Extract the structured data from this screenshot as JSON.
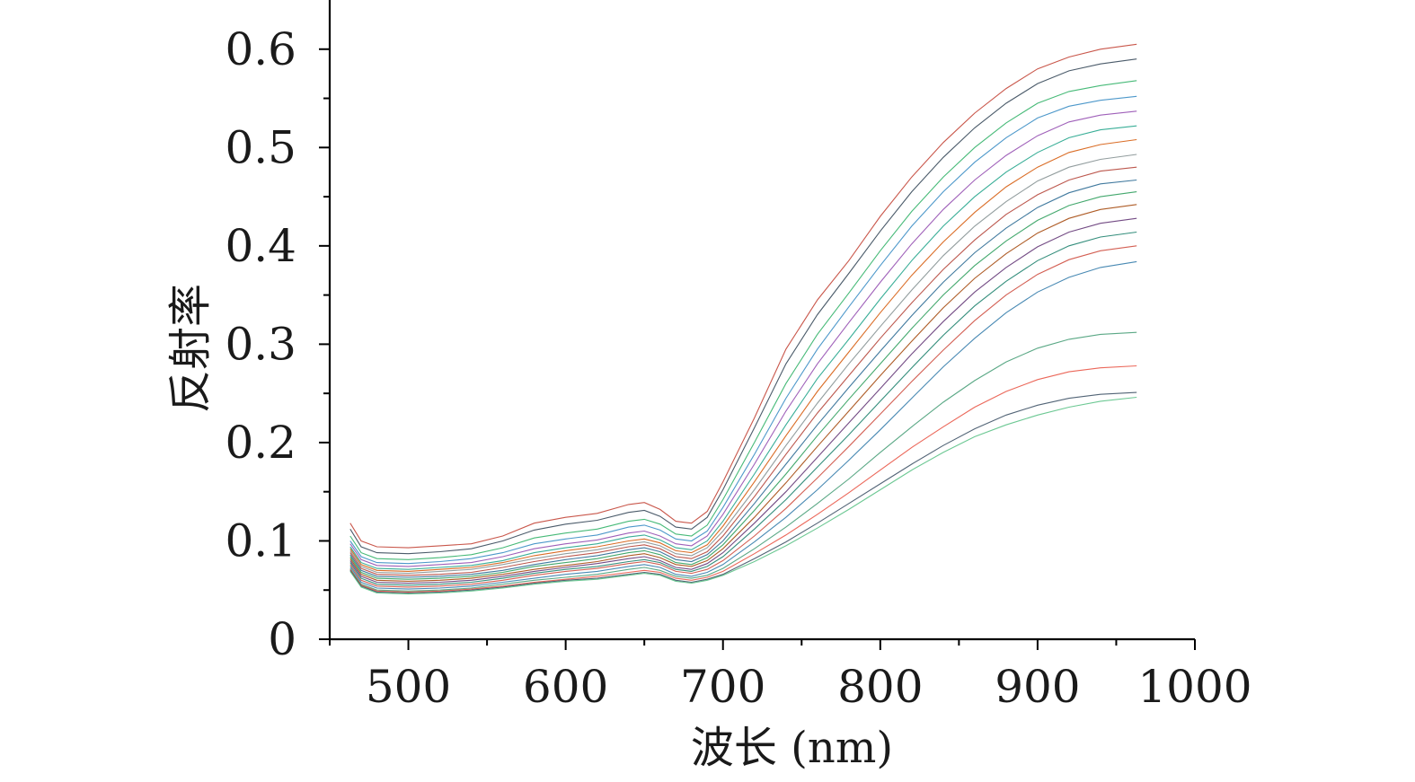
{
  "chart_data": {
    "type": "line",
    "title": "",
    "xlabel": "波长 (nm)",
    "ylabel": "反射率",
    "xlim": [
      450,
      1000
    ],
    "ylim": [
      0,
      0.65
    ],
    "grid": false,
    "legend": "none",
    "x_ticks": [
      500,
      600,
      700,
      800,
      900,
      1000
    ],
    "x_tick_labels": [
      "500",
      "600",
      "700",
      "800",
      "900",
      "1000"
    ],
    "y_ticks": [
      0,
      0.1,
      0.2,
      0.3,
      0.4,
      0.5,
      0.6
    ],
    "y_tick_labels": [
      "0",
      "0.1",
      "0.2",
      "0.3",
      "0.4",
      "0.5",
      "0.6"
    ],
    "x": [
      463,
      470,
      480,
      500,
      520,
      540,
      560,
      580,
      600,
      620,
      640,
      650,
      660,
      670,
      680,
      690,
      700,
      720,
      740,
      760,
      780,
      800,
      820,
      840,
      860,
      880,
      900,
      920,
      940,
      963
    ],
    "series_colors": [
      "#c0392b",
      "#2c3e50",
      "#27ae60",
      "#2e86c1",
      "#8e44ad",
      "#16a085",
      "#d35400",
      "#7f8c8d",
      "#b03a2e",
      "#1f618d",
      "#229954",
      "#a04000",
      "#5b2c6f",
      "#117a65",
      "#cb4335",
      "#2874a6",
      "#3d9970",
      "#e74c3c",
      "#34495e",
      "#52be80"
    ],
    "series": [
      {
        "values": [
          0.118,
          0.1,
          0.094,
          0.093,
          0.095,
          0.097,
          0.105,
          0.118,
          0.124,
          0.128,
          0.137,
          0.139,
          0.132,
          0.12,
          0.118,
          0.13,
          0.16,
          0.225,
          0.295,
          0.345,
          0.385,
          0.43,
          0.47,
          0.505,
          0.535,
          0.56,
          0.58,
          0.592,
          0.6,
          0.605
        ]
      },
      {
        "values": [
          0.112,
          0.094,
          0.088,
          0.087,
          0.089,
          0.092,
          0.1,
          0.111,
          0.117,
          0.121,
          0.129,
          0.131,
          0.125,
          0.114,
          0.112,
          0.124,
          0.152,
          0.215,
          0.28,
          0.33,
          0.372,
          0.415,
          0.455,
          0.49,
          0.52,
          0.545,
          0.565,
          0.578,
          0.585,
          0.59
        ]
      },
      {
        "values": [
          0.105,
          0.088,
          0.082,
          0.081,
          0.083,
          0.086,
          0.093,
          0.103,
          0.108,
          0.112,
          0.12,
          0.122,
          0.117,
          0.107,
          0.105,
          0.116,
          0.142,
          0.2,
          0.26,
          0.31,
          0.352,
          0.395,
          0.435,
          0.47,
          0.5,
          0.525,
          0.545,
          0.557,
          0.563,
          0.568
        ]
      },
      {
        "values": [
          0.1,
          0.084,
          0.078,
          0.077,
          0.079,
          0.082,
          0.088,
          0.097,
          0.102,
          0.106,
          0.114,
          0.116,
          0.111,
          0.102,
          0.1,
          0.11,
          0.134,
          0.188,
          0.245,
          0.295,
          0.338,
          0.38,
          0.42,
          0.455,
          0.485,
          0.51,
          0.53,
          0.542,
          0.548,
          0.552
        ]
      },
      {
        "values": [
          0.097,
          0.081,
          0.075,
          0.074,
          0.076,
          0.078,
          0.084,
          0.092,
          0.097,
          0.101,
          0.108,
          0.11,
          0.105,
          0.097,
          0.095,
          0.105,
          0.127,
          0.178,
          0.232,
          0.28,
          0.322,
          0.363,
          0.402,
          0.437,
          0.467,
          0.492,
          0.512,
          0.526,
          0.533,
          0.537
        ]
      },
      {
        "values": [
          0.094,
          0.078,
          0.072,
          0.071,
          0.073,
          0.075,
          0.08,
          0.088,
          0.093,
          0.097,
          0.104,
          0.106,
          0.101,
          0.093,
          0.091,
          0.1,
          0.12,
          0.168,
          0.218,
          0.265,
          0.305,
          0.346,
          0.385,
          0.42,
          0.45,
          0.475,
          0.495,
          0.51,
          0.518,
          0.522
        ]
      },
      {
        "values": [
          0.092,
          0.076,
          0.07,
          0.069,
          0.071,
          0.073,
          0.078,
          0.085,
          0.09,
          0.094,
          0.1,
          0.102,
          0.098,
          0.09,
          0.088,
          0.096,
          0.115,
          0.16,
          0.207,
          0.252,
          0.292,
          0.332,
          0.37,
          0.404,
          0.434,
          0.46,
          0.48,
          0.495,
          0.503,
          0.508
        ]
      },
      {
        "values": [
          0.09,
          0.074,
          0.068,
          0.067,
          0.069,
          0.071,
          0.076,
          0.082,
          0.087,
          0.091,
          0.097,
          0.099,
          0.095,
          0.087,
          0.085,
          0.093,
          0.11,
          0.152,
          0.197,
          0.24,
          0.28,
          0.318,
          0.355,
          0.39,
          0.42,
          0.445,
          0.466,
          0.48,
          0.488,
          0.493
        ]
      },
      {
        "values": [
          0.088,
          0.072,
          0.066,
          0.065,
          0.066,
          0.068,
          0.073,
          0.079,
          0.084,
          0.088,
          0.094,
          0.096,
          0.092,
          0.084,
          0.082,
          0.089,
          0.105,
          0.145,
          0.188,
          0.23,
          0.268,
          0.306,
          0.342,
          0.376,
          0.406,
          0.432,
          0.452,
          0.467,
          0.476,
          0.48
        ]
      },
      {
        "values": [
          0.086,
          0.07,
          0.064,
          0.063,
          0.064,
          0.066,
          0.07,
          0.076,
          0.081,
          0.085,
          0.091,
          0.093,
          0.089,
          0.081,
          0.079,
          0.086,
          0.1,
          0.138,
          0.178,
          0.218,
          0.256,
          0.293,
          0.329,
          0.363,
          0.393,
          0.418,
          0.439,
          0.454,
          0.463,
          0.467
        ]
      },
      {
        "values": [
          0.084,
          0.068,
          0.062,
          0.061,
          0.062,
          0.064,
          0.068,
          0.074,
          0.078,
          0.082,
          0.088,
          0.09,
          0.086,
          0.078,
          0.076,
          0.083,
          0.096,
          0.131,
          0.168,
          0.207,
          0.244,
          0.28,
          0.316,
          0.35,
          0.38,
          0.405,
          0.426,
          0.441,
          0.45,
          0.455
        ]
      },
      {
        "values": [
          0.082,
          0.066,
          0.06,
          0.059,
          0.06,
          0.062,
          0.066,
          0.071,
          0.075,
          0.079,
          0.085,
          0.087,
          0.083,
          0.076,
          0.074,
          0.08,
          0.092,
          0.124,
          0.159,
          0.196,
          0.232,
          0.268,
          0.303,
          0.337,
          0.367,
          0.392,
          0.413,
          0.428,
          0.437,
          0.442
        ]
      },
      {
        "values": [
          0.08,
          0.064,
          0.058,
          0.057,
          0.058,
          0.06,
          0.064,
          0.069,
          0.073,
          0.077,
          0.082,
          0.084,
          0.08,
          0.073,
          0.071,
          0.077,
          0.088,
          0.118,
          0.15,
          0.185,
          0.22,
          0.255,
          0.29,
          0.323,
          0.353,
          0.378,
          0.399,
          0.414,
          0.423,
          0.428
        ]
      },
      {
        "values": [
          0.078,
          0.062,
          0.056,
          0.055,
          0.056,
          0.058,
          0.062,
          0.067,
          0.071,
          0.074,
          0.079,
          0.081,
          0.078,
          0.071,
          0.069,
          0.074,
          0.084,
          0.112,
          0.142,
          0.175,
          0.208,
          0.242,
          0.276,
          0.309,
          0.339,
          0.364,
          0.385,
          0.4,
          0.409,
          0.414
        ]
      },
      {
        "values": [
          0.076,
          0.06,
          0.054,
          0.053,
          0.054,
          0.056,
          0.06,
          0.065,
          0.069,
          0.072,
          0.077,
          0.079,
          0.076,
          0.069,
          0.067,
          0.071,
          0.08,
          0.105,
          0.133,
          0.164,
          0.196,
          0.229,
          0.262,
          0.294,
          0.324,
          0.35,
          0.371,
          0.386,
          0.395,
          0.4
        ]
      },
      {
        "values": [
          0.074,
          0.058,
          0.052,
          0.051,
          0.052,
          0.054,
          0.058,
          0.062,
          0.066,
          0.069,
          0.074,
          0.076,
          0.073,
          0.066,
          0.064,
          0.068,
          0.076,
          0.099,
          0.124,
          0.152,
          0.182,
          0.213,
          0.245,
          0.277,
          0.306,
          0.332,
          0.353,
          0.368,
          0.378,
          0.384
        ]
      },
      {
        "values": [
          0.072,
          0.056,
          0.05,
          0.049,
          0.05,
          0.052,
          0.056,
          0.06,
          0.063,
          0.066,
          0.071,
          0.073,
          0.07,
          0.064,
          0.062,
          0.065,
          0.072,
          0.092,
          0.114,
          0.138,
          0.163,
          0.19,
          0.216,
          0.241,
          0.263,
          0.282,
          0.296,
          0.305,
          0.31,
          0.312
        ]
      },
      {
        "values": [
          0.071,
          0.055,
          0.049,
          0.048,
          0.049,
          0.051,
          0.054,
          0.058,
          0.061,
          0.064,
          0.068,
          0.07,
          0.068,
          0.062,
          0.06,
          0.063,
          0.069,
          0.087,
          0.106,
          0.127,
          0.149,
          0.172,
          0.195,
          0.216,
          0.236,
          0.252,
          0.264,
          0.272,
          0.276,
          0.278
        ]
      },
      {
        "values": [
          0.07,
          0.054,
          0.048,
          0.047,
          0.048,
          0.05,
          0.053,
          0.057,
          0.06,
          0.062,
          0.066,
          0.068,
          0.066,
          0.06,
          0.058,
          0.061,
          0.066,
          0.082,
          0.099,
          0.118,
          0.138,
          0.158,
          0.178,
          0.197,
          0.214,
          0.228,
          0.238,
          0.245,
          0.249,
          0.251
        ]
      },
      {
        "values": [
          0.069,
          0.053,
          0.047,
          0.046,
          0.047,
          0.049,
          0.052,
          0.056,
          0.059,
          0.061,
          0.065,
          0.067,
          0.065,
          0.059,
          0.057,
          0.06,
          0.065,
          0.079,
          0.095,
          0.113,
          0.132,
          0.152,
          0.172,
          0.19,
          0.206,
          0.218,
          0.228,
          0.236,
          0.242,
          0.246
        ]
      }
    ]
  }
}
